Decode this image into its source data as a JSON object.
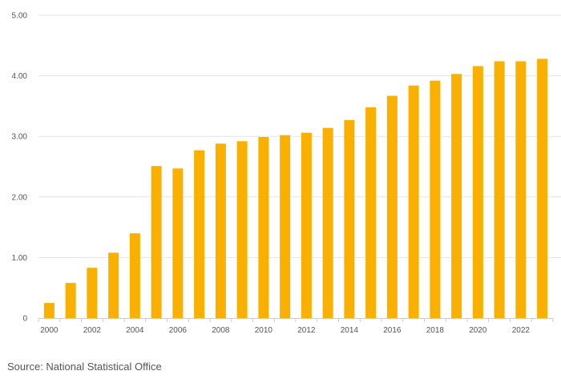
{
  "chart_data": {
    "type": "bar",
    "title": "",
    "xlabel": "",
    "ylabel": "",
    "categories": [
      "2000",
      "2001",
      "2002",
      "2003",
      "2004",
      "2005",
      "2006",
      "2007",
      "2008",
      "2009",
      "2010",
      "2011",
      "2012",
      "2013",
      "2014",
      "2015",
      "2016",
      "2017",
      "2018",
      "2019",
      "2020",
      "2021",
      "2022",
      "2023"
    ],
    "x_tick_labels": [
      "2000",
      "2002",
      "2004",
      "2006",
      "2008",
      "2010",
      "2012",
      "2014",
      "2016",
      "2018",
      "2020",
      "2022"
    ],
    "values": [
      0.25,
      0.58,
      0.83,
      1.08,
      1.4,
      2.51,
      2.47,
      2.77,
      2.88,
      2.92,
      2.99,
      3.02,
      3.06,
      3.14,
      3.27,
      3.48,
      3.67,
      3.84,
      3.92,
      4.03,
      4.16,
      4.24,
      4.24,
      4.28
    ],
    "y_ticks": [
      0,
      1,
      2,
      3,
      4,
      5
    ],
    "y_tick_labels": [
      "0",
      "1.00",
      "2.00",
      "3.00",
      "4.00",
      "5.00"
    ],
    "ylim": [
      0,
      5
    ],
    "grid": true,
    "bar_color": "#F9B000",
    "grid_color": "#E6E6E6"
  },
  "source": "Source: National Statistical Office"
}
